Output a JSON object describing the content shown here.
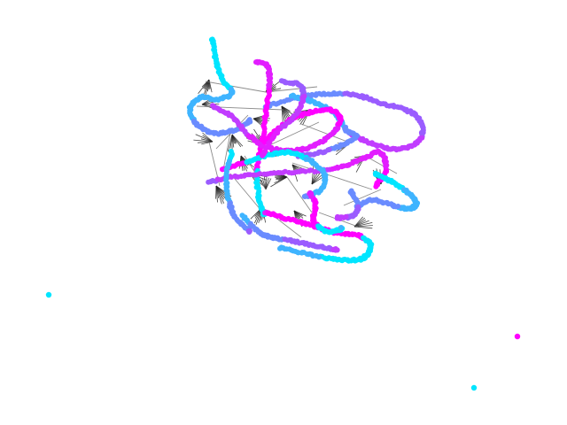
{
  "graph": {
    "style": "force-directed network drawing, dense nodes colored along a cyan-to-magenta gradient",
    "colors": {
      "background": "#ffffff",
      "edge": "#222222",
      "edge_light": "#777777",
      "palette": [
        "#00e5ff",
        "#3fb4ff",
        "#6a8cff",
        "#9a5cff",
        "#c13cff",
        "#e21eff",
        "#ff00ff"
      ]
    },
    "isolated_nodes": [
      {
        "id": "isolated-1",
        "color": "#00e5ff"
      },
      {
        "id": "isolated-2",
        "color": "#ff00ff"
      },
      {
        "id": "isolated-3",
        "color": "#00e5ff"
      }
    ]
  }
}
